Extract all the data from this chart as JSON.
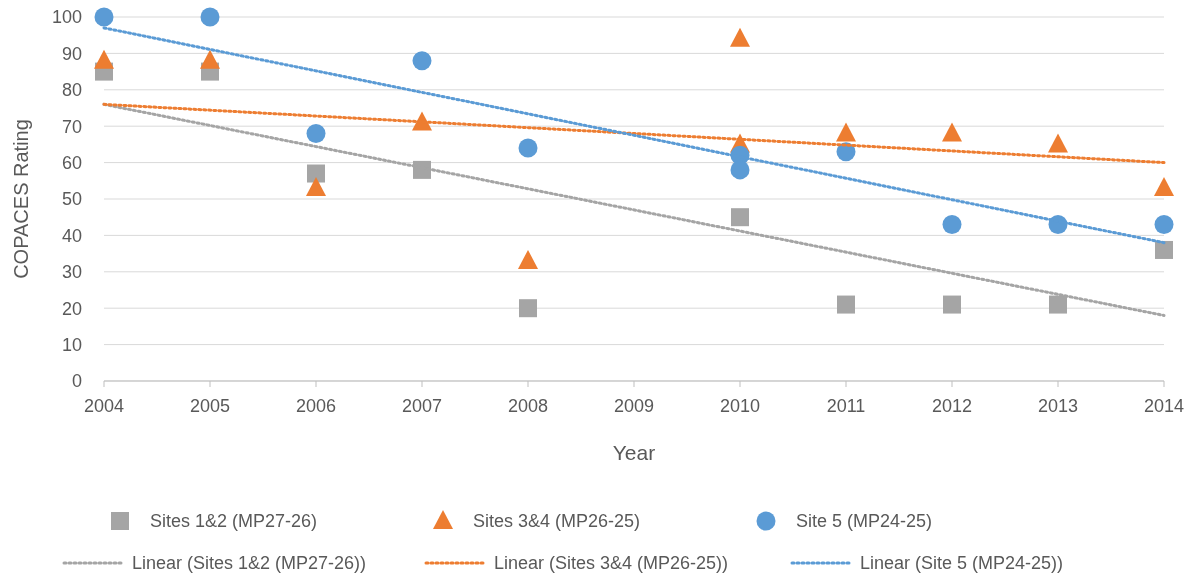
{
  "chart_data": {
    "type": "scatter",
    "xlabel": "Year",
    "ylabel": "COPACES Rating",
    "xlim": [
      2004,
      2014
    ],
    "xticks": [
      2004,
      2005,
      2006,
      2007,
      2008,
      2009,
      2010,
      2011,
      2012,
      2013,
      2014
    ],
    "ylim": [
      0,
      100
    ],
    "yticks": [
      0,
      10,
      20,
      30,
      40,
      50,
      60,
      70,
      80,
      90,
      100
    ],
    "grid": "y",
    "legend": "bottom",
    "series": [
      {
        "name": "Sites 1&2 (MP27-26)",
        "color": "#a5a5a5",
        "marker": "square",
        "x": [
          2004,
          2005,
          2006,
          2007,
          2008,
          2010,
          2011,
          2012,
          2013,
          2014
        ],
        "values": [
          85,
          85,
          57,
          58,
          20,
          45,
          21,
          21,
          21,
          36
        ]
      },
      {
        "name": "Sites 3&4 (MP26-25)",
        "color": "#ed7d31",
        "marker": "triangle",
        "x": [
          2004,
          2005,
          2006,
          2007,
          2008,
          2010,
          2010,
          2011,
          2012,
          2013,
          2014
        ],
        "values": [
          88,
          88,
          53,
          71,
          33,
          94,
          65,
          68,
          68,
          65,
          53
        ]
      },
      {
        "name": "Site 5 (MP24-25)",
        "color": "#5b9bd5",
        "marker": "circle",
        "x": [
          2004,
          2005,
          2006,
          2007,
          2008,
          2010,
          2010,
          2011,
          2012,
          2013,
          2014
        ],
        "values": [
          100,
          100,
          68,
          88,
          64,
          62,
          58,
          63,
          43,
          43,
          43
        ]
      },
      {
        "name": "Linear (Sites 1&2 (MP27-26))",
        "type": "line",
        "line_style": "dotted",
        "marker": "none",
        "color": "#a5a5a5",
        "x": [
          2004,
          2014
        ],
        "values": [
          76,
          18
        ]
      },
      {
        "name": "Linear (Sites 3&4 (MP26-25))",
        "type": "line",
        "line_style": "dotted",
        "marker": "none",
        "color": "#ed7d31",
        "x": [
          2004,
          2014
        ],
        "values": [
          76,
          60
        ]
      },
      {
        "name": "Linear (Site 5 (MP24-25))",
        "type": "line",
        "line_style": "dotted",
        "marker": "none",
        "color": "#5b9bd5",
        "x": [
          2004,
          2014
        ],
        "values": [
          97,
          38
        ]
      }
    ]
  }
}
